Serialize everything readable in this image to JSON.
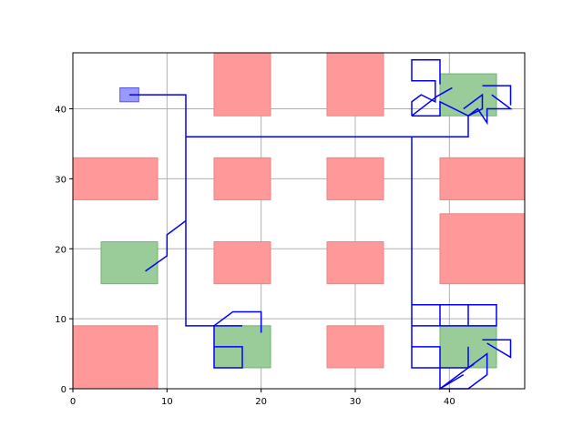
{
  "chart_data": {
    "type": "scatter",
    "title": "",
    "xlabel": "",
    "ylabel": "",
    "xlim": [
      0,
      48
    ],
    "ylim": [
      0,
      48
    ],
    "grid": true,
    "xticks": [
      0,
      10,
      20,
      30,
      40
    ],
    "yticks": [
      0,
      10,
      20,
      30,
      40
    ],
    "colors": {
      "obstacle": "#ff9999",
      "obstacle_edge": "#f08080",
      "goal": "#99cc99",
      "goal_edge": "#6fb36f",
      "start": "#9999ff",
      "start_edge": "#5555ee",
      "path": "#0000ff",
      "grid": "#b0b0b0"
    },
    "obstacles": [
      {
        "x": 15,
        "y": 39,
        "w": 6,
        "h": 9
      },
      {
        "x": 27,
        "y": 39,
        "w": 6,
        "h": 9
      },
      {
        "x": 0,
        "y": 27,
        "w": 9,
        "h": 6
      },
      {
        "x": 15,
        "y": 27,
        "w": 6,
        "h": 6
      },
      {
        "x": 27,
        "y": 27,
        "w": 6,
        "h": 6
      },
      {
        "x": 39,
        "y": 27,
        "w": 9,
        "h": 6
      },
      {
        "x": 39,
        "y": 15,
        "w": 9,
        "h": 10
      },
      {
        "x": 15,
        "y": 15,
        "w": 6,
        "h": 6
      },
      {
        "x": 27,
        "y": 15,
        "w": 6,
        "h": 6
      },
      {
        "x": 0,
        "y": 0,
        "w": 9,
        "h": 9
      },
      {
        "x": 27,
        "y": 3,
        "w": 6,
        "h": 6
      }
    ],
    "goals": [
      {
        "x": 39,
        "y": 39,
        "w": 6,
        "h": 6
      },
      {
        "x": 3,
        "y": 15,
        "w": 6,
        "h": 6
      },
      {
        "x": 15,
        "y": 3,
        "w": 6,
        "h": 6
      },
      {
        "x": 39,
        "y": 3,
        "w": 6,
        "h": 6
      }
    ],
    "start": {
      "x": 5,
      "y": 41,
      "w": 2,
      "h": 2
    },
    "paths": [
      [
        [
          6,
          42
        ],
        [
          12,
          42
        ],
        [
          12,
          24
        ],
        [
          10,
          22
        ],
        [
          10,
          19
        ],
        [
          7.7,
          16.8
        ]
      ],
      [
        [
          12,
          36
        ],
        [
          36,
          36
        ]
      ],
      [
        [
          12,
          24
        ],
        [
          12,
          9
        ],
        [
          15,
          9
        ],
        [
          15,
          3
        ],
        [
          18,
          3
        ],
        [
          18,
          6
        ],
        [
          15,
          6
        ]
      ],
      [
        [
          15,
          9
        ],
        [
          17,
          11
        ],
        [
          20,
          11
        ],
        [
          20,
          8
        ]
      ],
      [
        [
          15,
          9
        ],
        [
          18,
          9
        ]
      ],
      [
        [
          36,
          36
        ],
        [
          36,
          3
        ],
        [
          39,
          3
        ],
        [
          39,
          0
        ],
        [
          42,
          3
        ],
        [
          42,
          6
        ]
      ],
      [
        [
          36,
          36
        ],
        [
          42,
          36
        ]
      ],
      [
        [
          36,
          9
        ],
        [
          39,
          9
        ],
        [
          39,
          12
        ],
        [
          45,
          12
        ],
        [
          45,
          9
        ],
        [
          39,
          9
        ]
      ],
      [
        [
          42,
          12
        ],
        [
          42,
          9
        ]
      ],
      [
        [
          36,
          12
        ],
        [
          39,
          12
        ]
      ],
      [
        [
          36,
          6
        ],
        [
          39,
          6
        ],
        [
          39,
          3
        ],
        [
          42,
          3
        ],
        [
          44,
          5
        ],
        [
          44,
          2
        ],
        [
          42,
          0
        ],
        [
          39,
          0
        ]
      ],
      [
        [
          39,
          0
        ],
        [
          41.5,
          2
        ]
      ],
      [
        [
          42,
          3
        ],
        [
          42.6,
          3.5
        ]
      ],
      [
        [
          43.5,
          7
        ],
        [
          46.5,
          7
        ],
        [
          46.5,
          4.5
        ],
        [
          44,
          6.5
        ]
      ],
      [
        [
          36,
          39
        ],
        [
          38.7,
          41.8
        ],
        [
          40.3,
          43
        ]
      ],
      [
        [
          36,
          39
        ],
        [
          39,
          39
        ],
        [
          39,
          41
        ],
        [
          42,
          39
        ],
        [
          43,
          40
        ],
        [
          44,
          38
        ],
        [
          44,
          40
        ],
        [
          46.5,
          40
        ],
        [
          44.5,
          42
        ]
      ],
      [
        [
          39,
          36
        ],
        [
          42,
          36
        ],
        [
          42,
          39
        ],
        [
          43.5,
          40
        ],
        [
          43.5,
          42
        ],
        [
          41.5,
          40
        ]
      ],
      [
        [
          43.5,
          43.3
        ],
        [
          46.5,
          43.3
        ],
        [
          46.5,
          40.5
        ]
      ],
      [
        [
          36,
          39
        ],
        [
          36,
          41
        ],
        [
          37,
          42
        ],
        [
          38.5,
          41
        ],
        [
          38.5,
          44
        ],
        [
          36,
          44
        ],
        [
          36,
          47
        ],
        [
          39,
          47
        ],
        [
          39,
          43.5
        ]
      ]
    ]
  }
}
